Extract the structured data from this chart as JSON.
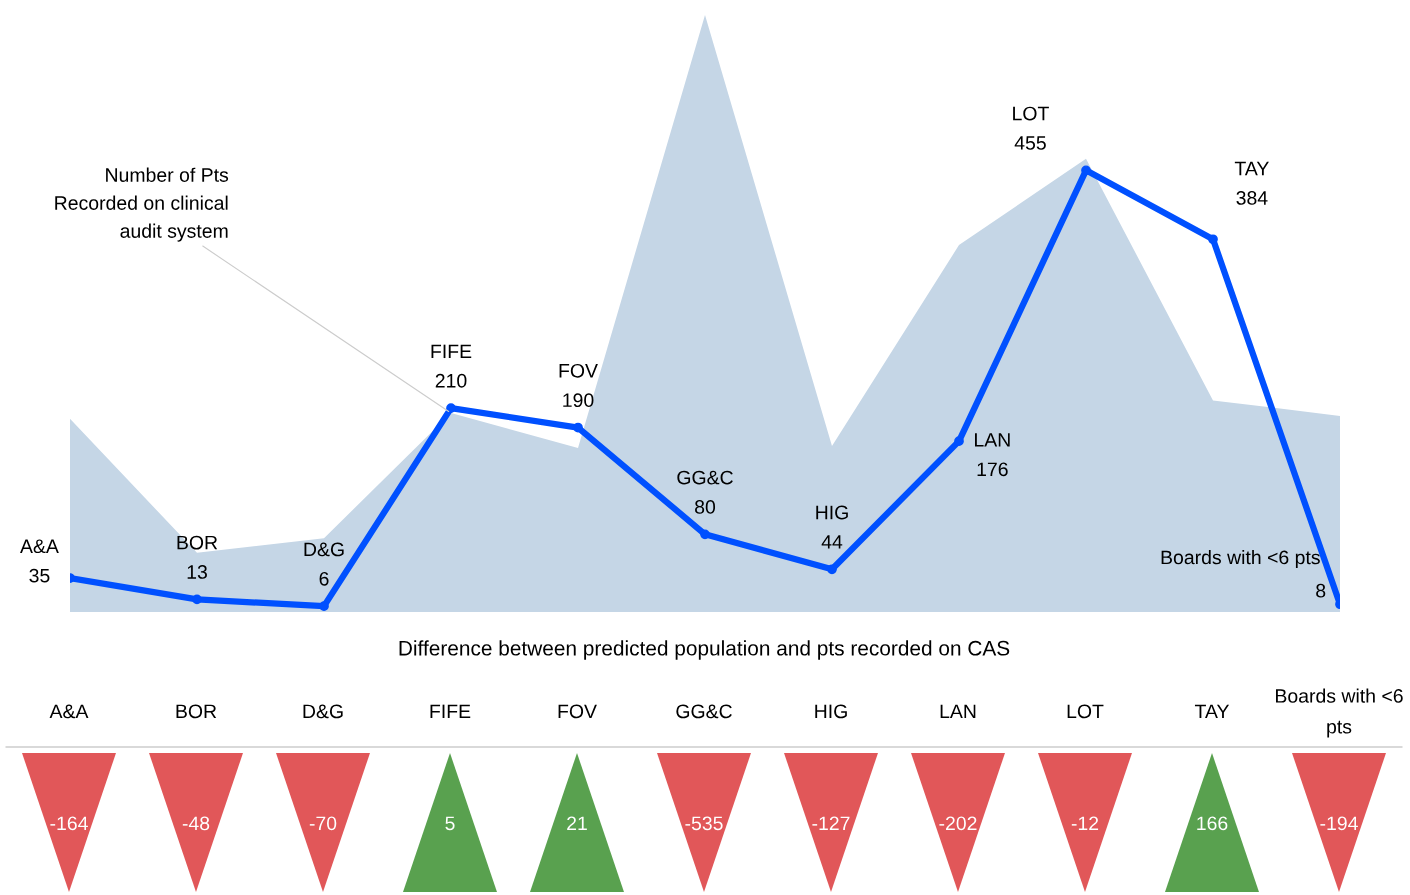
{
  "chart_data": [
    {
      "type": "line",
      "categories": [
        "A&A",
        "BOR",
        "D&G",
        "FIFE",
        "FOV",
        "GG&C",
        "HIG",
        "LAN",
        "LOT",
        "TAY",
        "Boards with <6 pts"
      ],
      "series": [
        {
          "type": "area",
          "color": "#c5d6e6",
          "values": [
            199,
            61,
            76,
            205,
            169,
            615,
            171,
            378,
            467,
            218,
            202
          ]
        },
        {
          "type": "line",
          "color": "#0050ff",
          "marker": "circle",
          "values": [
            35,
            13,
            6,
            210,
            190,
            80,
            44,
            176,
            455,
            384,
            8
          ],
          "value_labels": [
            "35",
            "13",
            "6",
            "210",
            "190",
            "80",
            "44",
            "176",
            "455",
            "384",
            "8"
          ]
        }
      ],
      "tick_labels": false,
      "annotations": [
        {
          "text": "Number of Pts\nRecorded on clinical\naudit system",
          "x": "FIFE",
          "y": 205
        }
      ]
    },
    {
      "type": "other",
      "title": "Difference between predicted population and pts recorded on CAS",
      "categories": [
        "A&A",
        "BOR",
        "D&G",
        "FIFE",
        "FOV",
        "GG&C",
        "HIG",
        "LAN",
        "LOT",
        "TAY",
        "Boards with <6 pts"
      ],
      "values": [
        -164,
        -48,
        -70,
        5,
        21,
        -535,
        -127,
        -202,
        -12,
        166,
        -194
      ],
      "colors": [
        "#e15759",
        "#e15759",
        "#e15759",
        "#59a14f",
        "#59a14f",
        "#e15759",
        "#e15759",
        "#e15759",
        "#e15759",
        "#59a14f",
        "#e15759"
      ],
      "data_labels": true
    }
  ]
}
